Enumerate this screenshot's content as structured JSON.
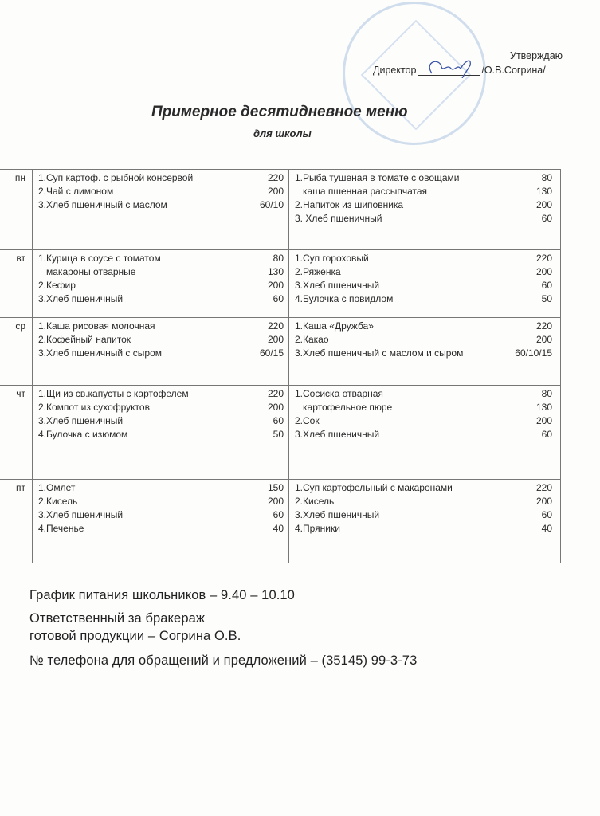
{
  "header": {
    "approve": "Утверждаю",
    "director_label": "Директор",
    "director_name": "/О.В.Согрина/",
    "title": "Примерное десятидневное меню",
    "subtitle": "для школы"
  },
  "days": [
    {
      "day": "пн",
      "meal1": [
        {
          "name": "1.Суп картоф. с рыбной консервой",
          "qty": "220"
        },
        {
          "name": "2.Чай с лимоном",
          "qty": "200"
        },
        {
          "name": "3.Хлеб пшеничный с маслом",
          "qty": "60/10"
        }
      ],
      "meal2": [
        {
          "name": "1.Рыба тушеная в томате с овощами",
          "qty": "80"
        },
        {
          "name": "каша пшенная рассыпчатая",
          "qty": "130",
          "indent": true
        },
        {
          "name": "2.Напиток из шиповника",
          "qty": "200"
        },
        {
          "name": "3. Хлеб пшеничный",
          "qty": "60"
        }
      ]
    },
    {
      "day": "вт",
      "meal1": [
        {
          "name": "1.Курица в соусе с томатом",
          "qty": "80"
        },
        {
          "name": "макароны отварные",
          "qty": "130",
          "indent": true
        },
        {
          "name": "2.Кефир",
          "qty": "200"
        },
        {
          "name": "3.Хлеб пшеничный",
          "qty": "60"
        }
      ],
      "meal2": [
        {
          "name": "1.Суп гороховый",
          "qty": "220"
        },
        {
          "name": "2.Ряженка",
          "qty": "200"
        },
        {
          "name": "3.Хлеб пшеничный",
          "qty": "60"
        },
        {
          "name": " 4.Булочка с повидлом",
          "qty": "50"
        }
      ]
    },
    {
      "day": "ср",
      "meal1": [
        {
          "name": "1.Каша рисовая молочная",
          "qty": "220"
        },
        {
          "name": "2.Кофейный напиток",
          "qty": "200"
        },
        {
          "name": "3.Хлеб пшеничный с сыром",
          "qty": "60/15"
        }
      ],
      "meal2": [
        {
          "name": "1.Каша «Дружба»",
          "qty": "220"
        },
        {
          "name": "2.Какао",
          "qty": "200"
        },
        {
          "name": "3.Хлеб пшеничный  с маслом и сыром",
          "qty": "60/10/15"
        }
      ]
    },
    {
      "day": "чт",
      "meal1": [
        {
          "name": "1.Щи из св.капусты с картофелем",
          "qty": "220"
        },
        {
          "name": "2.Компот из сухофруктов",
          "qty": "200"
        },
        {
          "name": "3.Хлеб пшеничный",
          "qty": "60"
        },
        {
          "name": "4.Булочка с изюмом",
          "qty": "50"
        }
      ],
      "meal2": [
        {
          "name": "1.Сосиска отварная",
          "qty": "80"
        },
        {
          "name": "картофельное пюре",
          "qty": "130",
          "indent": true
        },
        {
          "name": "2.Сок",
          "qty": "200"
        },
        {
          "name": "3.Хлеб пшеничный",
          "qty": "60"
        }
      ]
    },
    {
      "day": "пт",
      "meal1": [
        {
          "name": "1.Омлет",
          "qty": "150"
        },
        {
          "name": "2.Кисель",
          "qty": "200"
        },
        {
          "name": "3.Хлеб пшеничный",
          "qty": "60"
        },
        {
          "name": "4.Печенье",
          "qty": "40"
        }
      ],
      "meal2": [
        {
          "name": "1.Суп картофельный с макаронами",
          "qty": "220"
        },
        {
          "name": "2.Кисель",
          "qty": "200"
        },
        {
          "name": "3.Хлеб пшеничный",
          "qty": "60"
        },
        {
          "name": "4.Пряники",
          "qty": "40"
        }
      ]
    }
  ],
  "footer": {
    "schedule": "График питания школьников – 9.40 – 10.10",
    "responsible_1": "Ответственный за бракераж",
    "responsible_2": "готовой продукции – Согрина О.В.",
    "phone": "№ телефона для обращений и предложений – (35145) 99-3-73"
  }
}
